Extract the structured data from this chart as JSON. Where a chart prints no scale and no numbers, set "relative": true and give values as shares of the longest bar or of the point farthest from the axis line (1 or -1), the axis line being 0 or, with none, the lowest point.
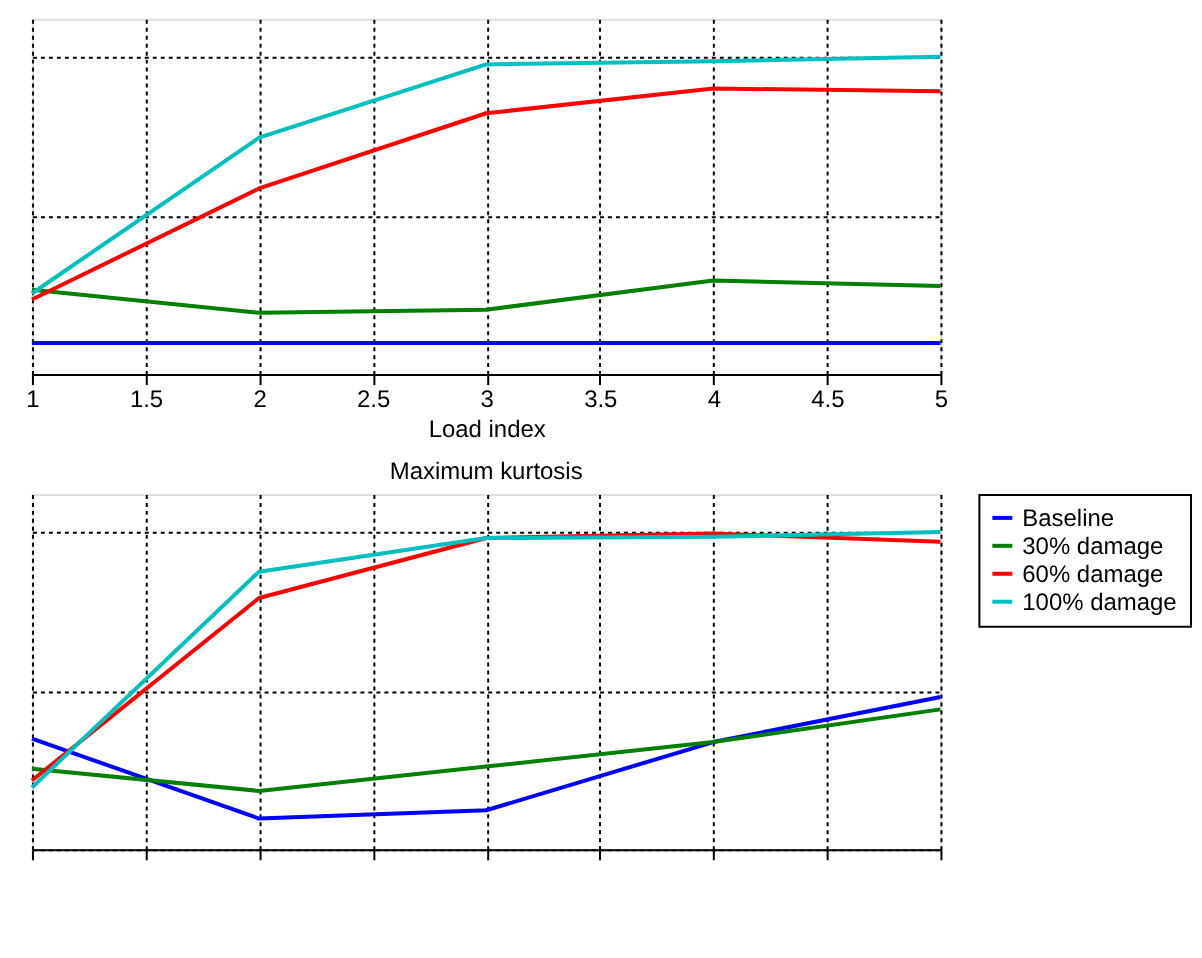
{
  "chart_data": [
    {
      "type": "line",
      "relative": true,
      "xlabel": "Load index",
      "x": [
        1,
        2,
        3,
        4,
        5
      ],
      "xlim": [
        1,
        5
      ],
      "xticks": [
        1,
        1.5,
        2,
        2.5,
        3,
        3.5,
        4,
        4.5,
        5
      ],
      "tick_labels": "x",
      "grid": true,
      "line_style": "solid",
      "series": [
        {
          "color": "#0000ff",
          "values": [
            0.098,
            0.098,
            0.098,
            0.098,
            0.098
          ]
        },
        {
          "color": "#008000",
          "values": [
            0.266,
            0.193,
            0.203,
            0.295,
            0.278
          ]
        },
        {
          "color": "#ff0000",
          "values": [
            0.235,
            0.585,
            0.822,
            0.9,
            0.891
          ]
        },
        {
          "color": "#00bfbf",
          "values": [
            0.254,
            0.745,
            0.976,
            0.986,
            1
          ]
        }
      ]
    },
    {
      "type": "line",
      "relative": true,
      "title": "Maximum kurtosis",
      "x": [
        1,
        2,
        3,
        4,
        5
      ],
      "xlim": [
        1,
        5
      ],
      "xticks": [
        1,
        1.5,
        2,
        2.5,
        3,
        3.5,
        4,
        4.5,
        5
      ],
      "tick_labels": false,
      "grid": true,
      "line_style": "solid",
      "legend": "right",
      "series": [
        {
          "name": "Baseline",
          "color": "#0000ff",
          "values": [
            0.349,
            0.097,
            0.123,
            0.338,
            0.48
          ]
        },
        {
          "name": "30% damage",
          "color": "#008000",
          "values": [
            0.254,
            0.184,
            0.261,
            0.338,
            0.441
          ]
        },
        {
          "name": "60% damage",
          "color": "#ff0000",
          "values": [
            0.217,
            0.792,
            0.981,
            0.995,
            0.969
          ]
        },
        {
          "name": "100% damage",
          "color": "#00bfbf",
          "values": [
            0.195,
            0.875,
            0.981,
            0.985,
            1
          ]
        }
      ]
    }
  ]
}
